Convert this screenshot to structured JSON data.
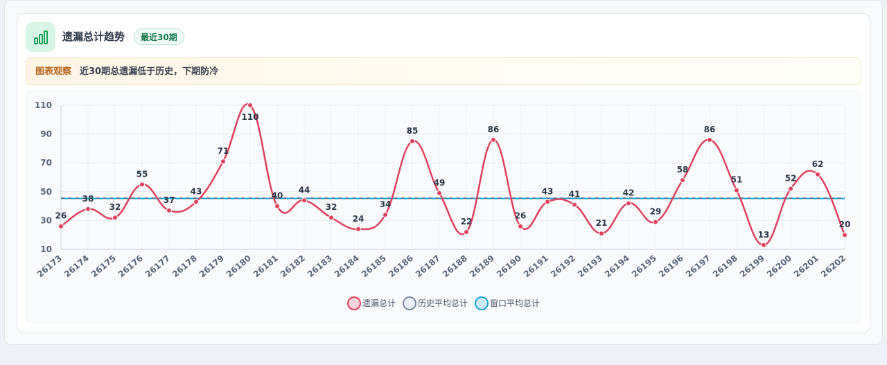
{
  "header": {
    "title": "遗漏总计趋势",
    "badge": "最近30期",
    "icon": "bar-chart-icon"
  },
  "note": {
    "label": "图表观察",
    "text": "近30期总遗漏低于历史，下期防冷"
  },
  "colors": {
    "line": "#e0405e",
    "history_avg": "#5a6b86",
    "window_avg": "#1ba6d6",
    "label_text": "#2d3748",
    "tick_text": "#5a6478"
  },
  "chart_data": {
    "type": "line",
    "categories": [
      "26173",
      "26174",
      "26175",
      "26176",
      "26177",
      "26178",
      "26179",
      "26180",
      "26181",
      "26182",
      "26183",
      "26184",
      "26185",
      "26186",
      "26187",
      "26188",
      "26189",
      "26190",
      "26191",
      "26192",
      "26193",
      "26194",
      "26195",
      "26196",
      "26197",
      "26198",
      "26199",
      "26200",
      "26201",
      "26202"
    ],
    "series": [
      {
        "name": "遗漏总计",
        "values": [
          26,
          38,
          32,
          55,
          37,
          43,
          71,
          110,
          40,
          44,
          32,
          24,
          34,
          85,
          49,
          22,
          86,
          26,
          43,
          41,
          21,
          42,
          29,
          58,
          86,
          51,
          13,
          52,
          62,
          20
        ]
      },
      {
        "name": "历史平均总计",
        "values": [
          45.5,
          45.5,
          45.5,
          45.5,
          45.5,
          45.5,
          45.5,
          45.5,
          45.5,
          45.5,
          45.5,
          45.5,
          45.5,
          45.5,
          45.5,
          45.5,
          45.5,
          45.5,
          45.5,
          45.5,
          45.5,
          45.5,
          45.5,
          45.5,
          45.5,
          45.5,
          45.5,
          45.5,
          45.5,
          45.5
        ]
      },
      {
        "name": "窗口平均总计",
        "values": [
          45.3,
          45.3,
          45.3,
          45.3,
          45.3,
          45.3,
          45.3,
          45.3,
          45.3,
          45.3,
          45.3,
          45.3,
          45.3,
          45.3,
          45.3,
          45.3,
          45.3,
          45.3,
          45.3,
          45.3,
          45.3,
          45.3,
          45.3,
          45.3,
          45.3,
          45.3,
          45.3,
          45.3,
          45.3,
          45.3
        ]
      }
    ],
    "yticks": [
      10,
      30,
      50,
      70,
      90,
      110
    ],
    "ylim": [
      10,
      110
    ],
    "grid": true,
    "legend_position": "bottom-center",
    "title": "",
    "xlabel": "",
    "ylabel": ""
  },
  "legend": [
    {
      "label": "遗漏总计"
    },
    {
      "label": "历史平均总计"
    },
    {
      "label": "窗口平均总计"
    }
  ]
}
